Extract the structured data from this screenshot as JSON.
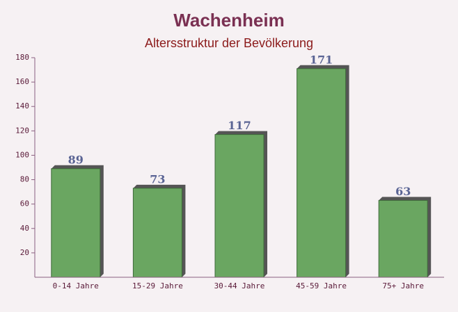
{
  "chart_data": {
    "type": "bar",
    "title": "Wachenheim",
    "subtitle": "Altersstruktur der Bevölkerung",
    "categories": [
      "0-14 Jahre",
      "15-29 Jahre",
      "30-44 Jahre",
      "45-59 Jahre",
      "75+ Jahre"
    ],
    "values": [
      89,
      73,
      117,
      171,
      63
    ],
    "color": "#6aa661",
    "ylim": [
      0,
      180
    ],
    "yticks": [
      20,
      40,
      60,
      80,
      100,
      120,
      140,
      160,
      180
    ]
  }
}
